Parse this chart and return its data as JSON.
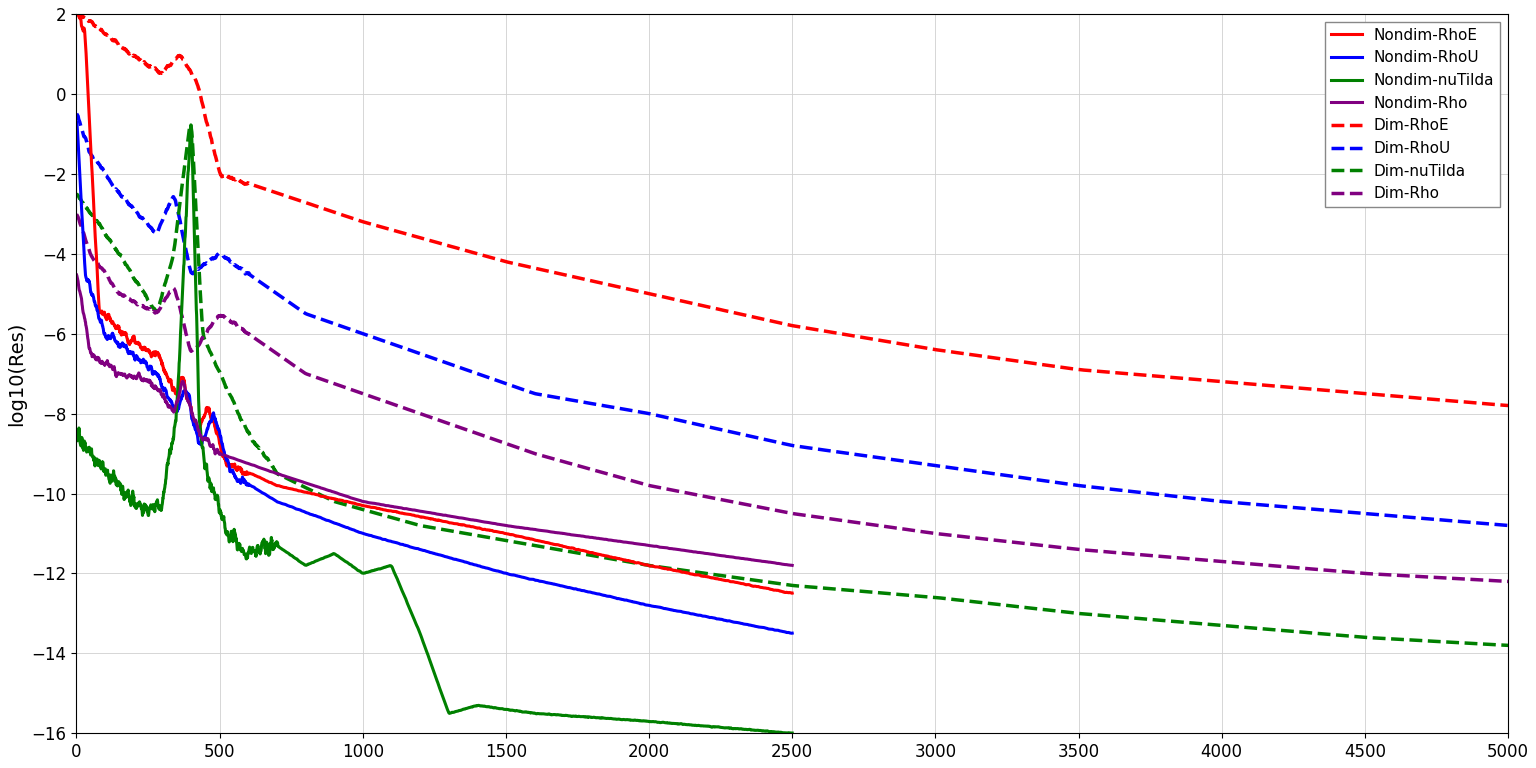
{
  "ylabel": "log10(Res)",
  "xlabel": "",
  "xlim": [
    0,
    5000
  ],
  "ylim": [
    -16,
    2
  ],
  "yticks": [
    2,
    0,
    -2,
    -4,
    -6,
    -8,
    -10,
    -12,
    -14,
    -16
  ],
  "xticks": [
    0,
    500,
    1000,
    1500,
    2000,
    2500,
    3000,
    3500,
    4000,
    4500,
    5000
  ],
  "colors": {
    "red": "#ff0000",
    "blue": "#0000ff",
    "green": "#008000",
    "purple": "#800080"
  },
  "figsize": [
    15.36,
    7.68
  ],
  "dpi": 100,
  "lw_solid": 2.2,
  "lw_dashed": 2.5
}
